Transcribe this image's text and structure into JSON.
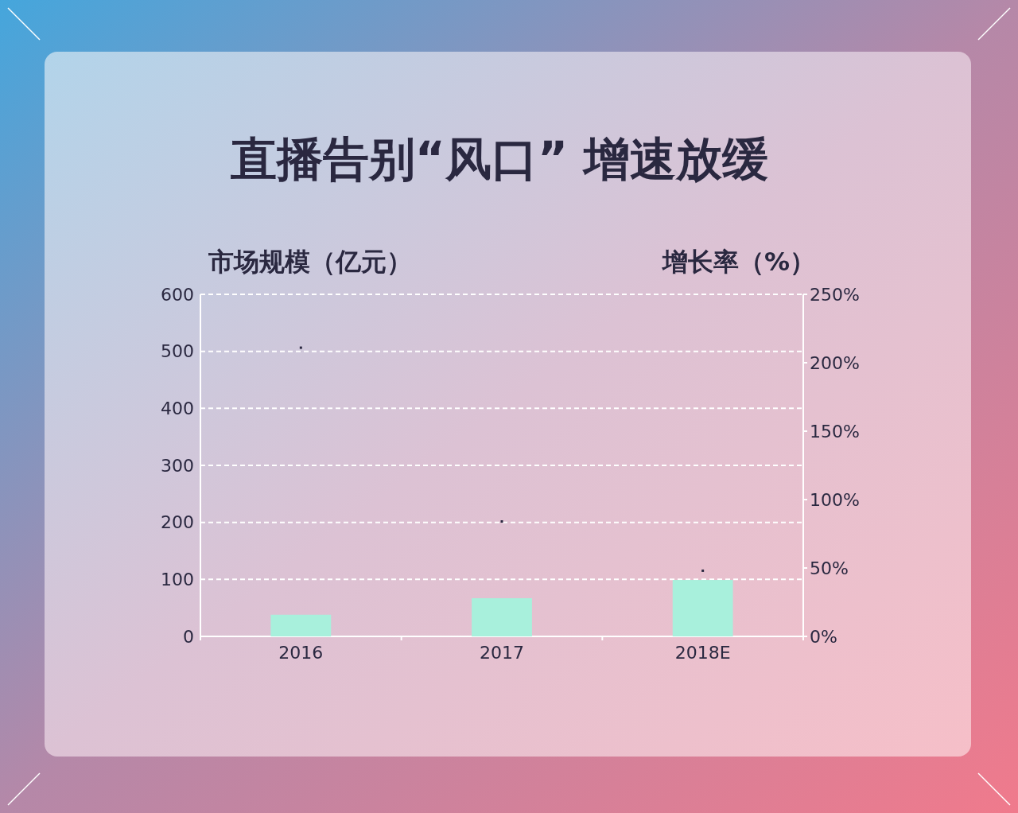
{
  "chart_data": {
    "type": "bar",
    "title": "直播告别“风口” 增速放缓",
    "ylabel": "市场规模（亿元）",
    "y2label": "增长率（%）",
    "categories": [
      "2016",
      "2017",
      "2018E"
    ],
    "series": [
      {
        "color": "#a8f0dc",
        "values": [
          38,
          67,
          99
        ]
      },
      {
        "type": "scatter",
        "axis": "y2",
        "color": "#2a2840",
        "values": [
          211,
          84,
          48
        ]
      }
    ],
    "ylim": [
      0,
      600
    ],
    "yticks": [
      0,
      100,
      200,
      300,
      400,
      500,
      600
    ],
    "y2lim": [
      0,
      250
    ],
    "y2ticks": [
      {
        "value": 0,
        "label": "0%"
      },
      {
        "value": 50,
        "label": "50%"
      },
      {
        "value": 100,
        "label": "100%"
      },
      {
        "value": 150,
        "label": "150%"
      },
      {
        "value": 200,
        "label": "200%"
      },
      {
        "value": 250,
        "label": "250%"
      }
    ],
    "grid": "y",
    "marker": "square"
  }
}
